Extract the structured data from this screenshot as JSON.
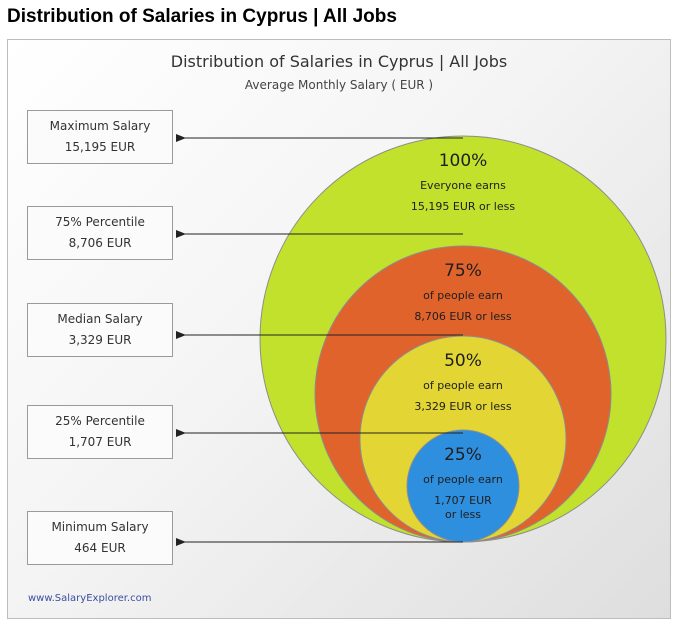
{
  "heading": "Distribution of Salaries in Cyprus | All Jobs",
  "footer": "www.SalaryExplorer.com",
  "chart_data": {
    "type": "nested-circles",
    "title": "Distribution of Salaries in Cyprus | All Jobs",
    "subtitle": "Average Monthly Salary ( EUR )",
    "unit": "EUR",
    "stats": [
      {
        "label": "Maximum Salary",
        "value": 15195,
        "display": "15,195 EUR"
      },
      {
        "label": "75% Percentile",
        "value": 8706,
        "display": "8,706 EUR"
      },
      {
        "label": "Median Salary",
        "value": 3329,
        "display": "3,329 EUR"
      },
      {
        "label": "25% Percentile",
        "value": 1707,
        "display": "1,707 EUR"
      },
      {
        "label": "Minimum Salary",
        "value": 464,
        "display": "464 EUR"
      }
    ],
    "circles": [
      {
        "percent": "100%",
        "line1": "Everyone earns",
        "line2": "15,195 EUR or less",
        "color": "#c2e12c"
      },
      {
        "percent": "75%",
        "line1": "of people earn",
        "line2": "8,706 EUR or less",
        "color": "#e0632c"
      },
      {
        "percent": "50%",
        "line1": "of people earn",
        "line2": "3,329 EUR or less",
        "color": "#e3d634"
      },
      {
        "percent": "25%",
        "line1": "of people earn",
        "line2": "1,707 EUR",
        "line3": "or less",
        "color": "#2e8fde"
      }
    ]
  }
}
